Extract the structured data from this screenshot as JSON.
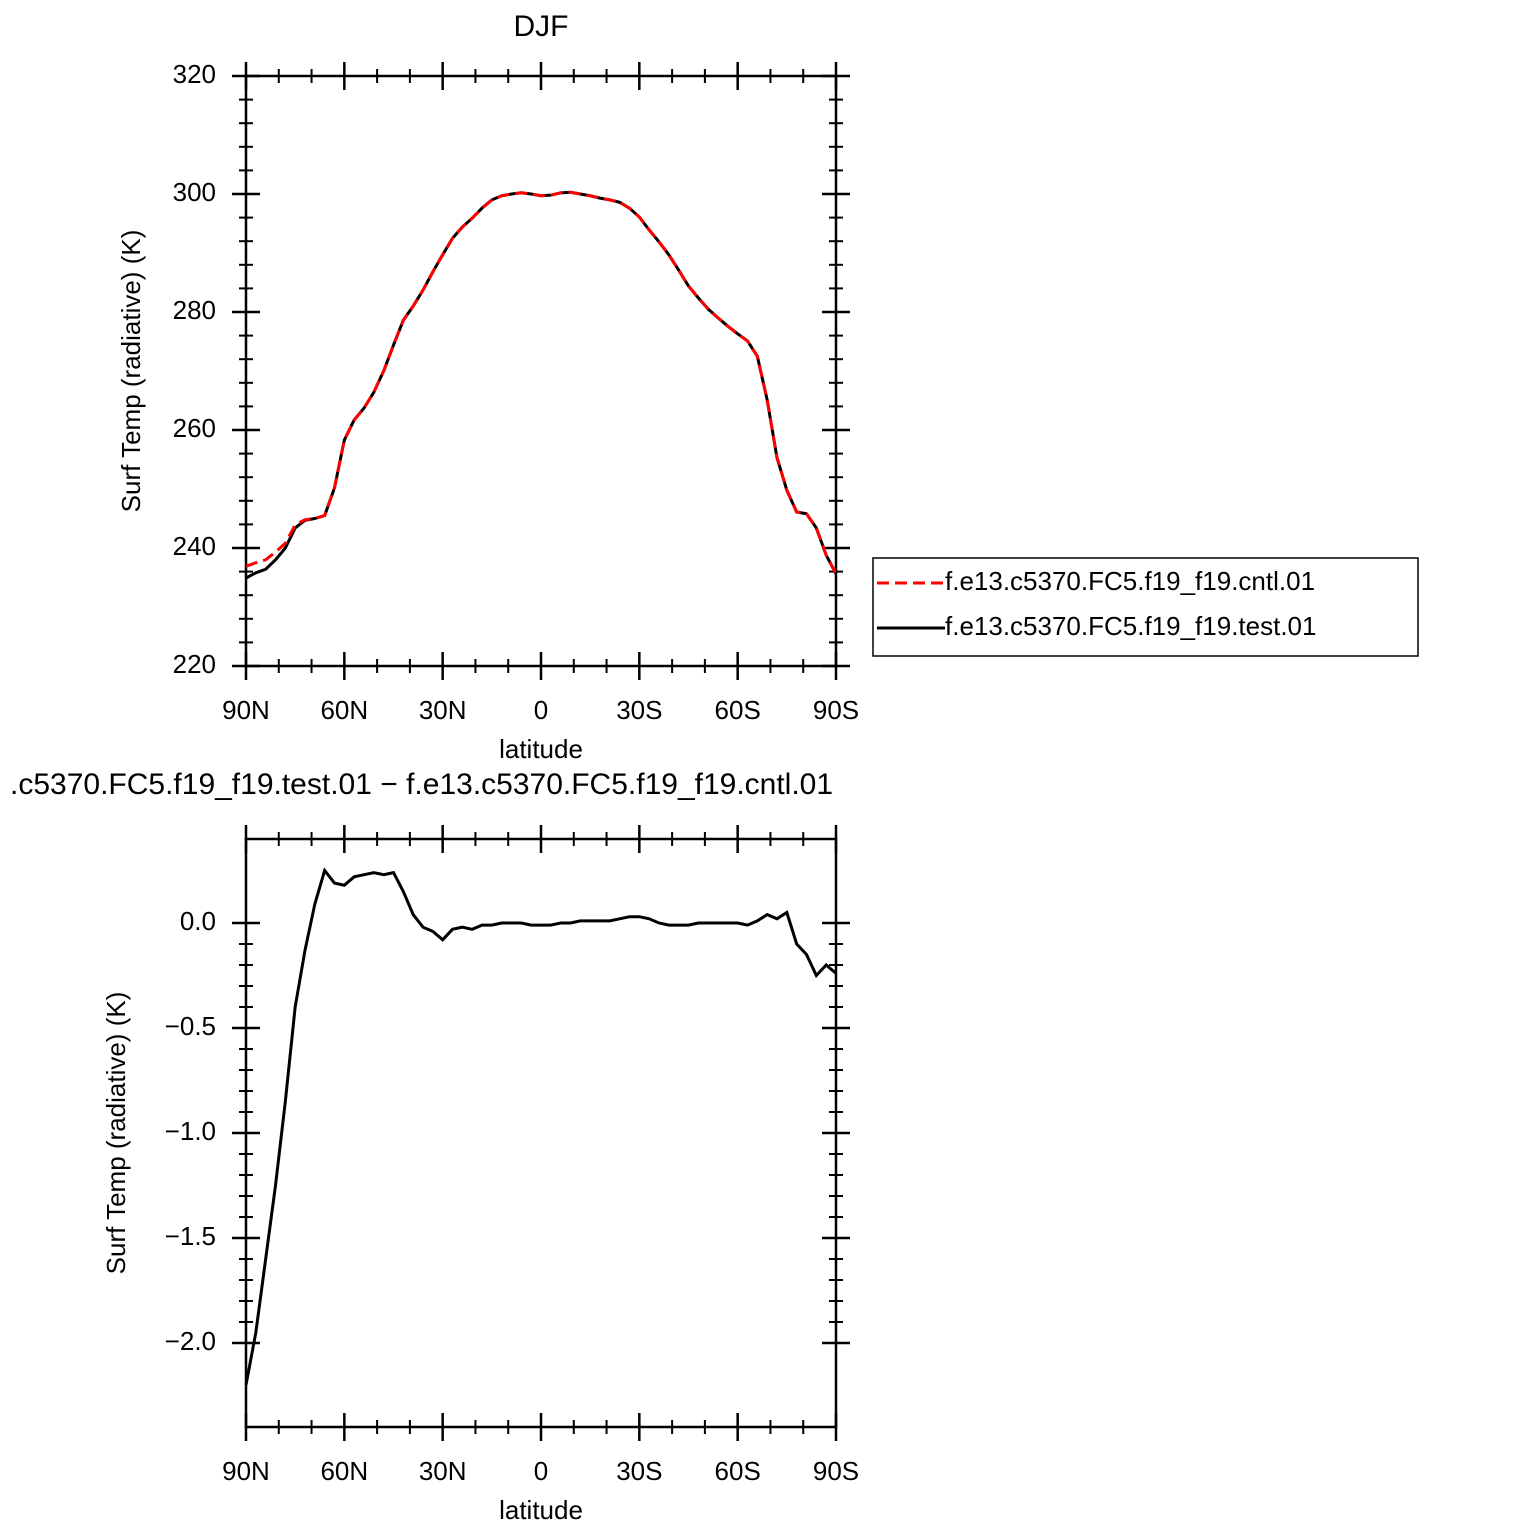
{
  "chart_data": [
    {
      "type": "line",
      "title": "DJF",
      "xlabel": "latitude",
      "ylabel": "Surf Temp (radiative) (K)",
      "x": [
        90,
        87,
        84,
        81,
        78,
        75,
        72,
        69,
        66,
        63,
        60,
        57,
        54,
        51,
        48,
        45,
        42,
        39,
        36,
        33,
        30,
        27,
        24,
        21,
        18,
        15,
        12,
        9,
        6,
        3,
        0,
        -3,
        -6,
        -9,
        -12,
        -15,
        -18,
        -21,
        -24,
        -27,
        -30,
        -33,
        -36,
        -39,
        -42,
        -45,
        -48,
        -51,
        -54,
        -57,
        -60,
        -63,
        -66,
        -69,
        -72,
        -75,
        -78,
        -81,
        -84,
        -87,
        -90
      ],
      "series": [
        {
          "name": "f.e13.c5370.FC5.f19_f19.cntl.01",
          "color": "#ff0000",
          "line_style": "dashed",
          "values": [
            236.9,
            237.5,
            238.0,
            239.3,
            240.8,
            243.9,
            244.8,
            245.0,
            245.5,
            250.2,
            258.3,
            261.7,
            263.7,
            266.4,
            270.0,
            274.4,
            278.6,
            281.0,
            283.7,
            286.8,
            289.7,
            292.5,
            294.4,
            295.9,
            297.6,
            299.0,
            299.7,
            300.0,
            300.2,
            300.0,
            299.7,
            299.8,
            300.2,
            300.3,
            300.0,
            299.7,
            299.3,
            299.0,
            298.6,
            297.6,
            296.1,
            293.9,
            291.9,
            289.7,
            287.1,
            284.4,
            282.4,
            280.5,
            279.0,
            277.6,
            276.3,
            275.1,
            272.5,
            265.1,
            255.3,
            249.8,
            246.1,
            245.8,
            243.4,
            238.8,
            235.6
          ]
        },
        {
          "name": "f.e13.c5370.FC5.f19_f19.test.01",
          "color": "#000000",
          "line_style": "solid",
          "values": [
            234.9,
            235.8,
            236.4,
            238.0,
            240.0,
            243.4,
            244.7,
            245.0,
            245.5,
            250.2,
            258.3,
            261.7,
            263.7,
            266.4,
            270.0,
            274.4,
            278.6,
            281.0,
            283.7,
            286.8,
            289.7,
            292.5,
            294.4,
            295.9,
            297.6,
            299.0,
            299.7,
            300.0,
            300.2,
            300.0,
            299.7,
            299.8,
            300.2,
            300.3,
            300.0,
            299.7,
            299.3,
            299.0,
            298.6,
            297.6,
            296.1,
            293.9,
            291.9,
            289.7,
            287.1,
            284.4,
            282.4,
            280.5,
            279.0,
            277.6,
            276.3,
            275.1,
            272.5,
            265.1,
            255.3,
            249.8,
            246.1,
            245.8,
            243.4,
            238.8,
            235.6
          ]
        }
      ],
      "xlim": [
        90,
        -90
      ],
      "xticks": [
        {
          "value": 90,
          "label": "90N"
        },
        {
          "value": 60,
          "label": "60N"
        },
        {
          "value": 30,
          "label": "30N"
        },
        0,
        {
          "value": -30,
          "label": "30S"
        },
        {
          "value": -60,
          "label": "60S"
        },
        {
          "value": -90,
          "label": "90S"
        }
      ],
      "ylim": [
        220,
        320
      ],
      "yticks": [
        220,
        240,
        260,
        280,
        300,
        320
      ],
      "legend": "right"
    },
    {
      "type": "line",
      "title": ".c5370.FC5.f19_f19.test.01 − f.e13.c5370.FC5.f19_f19.cntl.01",
      "xlabel": "latitude",
      "ylabel": "Surf Temp (radiative) (K)",
      "x": [
        90,
        87,
        84,
        81,
        78,
        75,
        72,
        69,
        66,
        63,
        60,
        57,
        54,
        51,
        48,
        45,
        42,
        39,
        36,
        33,
        30,
        27,
        24,
        21,
        18,
        15,
        12,
        9,
        6,
        3,
        0,
        -3,
        -6,
        -9,
        -12,
        -15,
        -18,
        -21,
        -24,
        -27,
        -30,
        -33,
        -36,
        -39,
        -42,
        -45,
        -48,
        -51,
        -54,
        -57,
        -60,
        -63,
        -66,
        -69,
        -72,
        -75,
        -78,
        -81,
        -84,
        -87,
        -90
      ],
      "series": [
        {
          "color": "#000000",
          "line_style": "solid",
          "values": [
            -2.2,
            -1.95,
            -1.6,
            -1.25,
            -0.85,
            -0.4,
            -0.13,
            0.09,
            0.25,
            0.19,
            0.18,
            0.22,
            0.23,
            0.24,
            0.23,
            0.24,
            0.15,
            0.04,
            -0.02,
            -0.04,
            -0.08,
            -0.03,
            -0.02,
            -0.03,
            -0.01,
            -0.01,
            0.0,
            0.0,
            0.0,
            -0.01,
            -0.01,
            -0.01,
            0.0,
            0.0,
            0.01,
            0.01,
            0.01,
            0.01,
            0.02,
            0.03,
            0.03,
            0.02,
            0.0,
            -0.01,
            -0.01,
            -0.01,
            0.0,
            0.0,
            0.0,
            0.0,
            0.0,
            -0.01,
            0.01,
            0.04,
            0.02,
            0.05,
            -0.1,
            -0.15,
            -0.25,
            -0.2,
            -0.24
          ]
        }
      ],
      "xlim": [
        90,
        -90
      ],
      "xticks": [
        {
          "value": 90,
          "label": "90N"
        },
        {
          "value": 60,
          "label": "60N"
        },
        {
          "value": 30,
          "label": "30N"
        },
        0,
        {
          "value": -30,
          "label": "30S"
        },
        {
          "value": -60,
          "label": "60S"
        },
        {
          "value": -90,
          "label": "90S"
        }
      ],
      "ylim": [
        -2.4,
        0.4
      ],
      "yticks": [
        {
          "value": -2.0,
          "label": "−2.0"
        },
        {
          "value": -1.5,
          "label": "−1.5"
        },
        {
          "value": -1.0,
          "label": "−1.0"
        },
        {
          "value": -0.5,
          "label": "−0.5"
        },
        {
          "value": 0,
          "label": "0.0"
        }
      ]
    }
  ]
}
